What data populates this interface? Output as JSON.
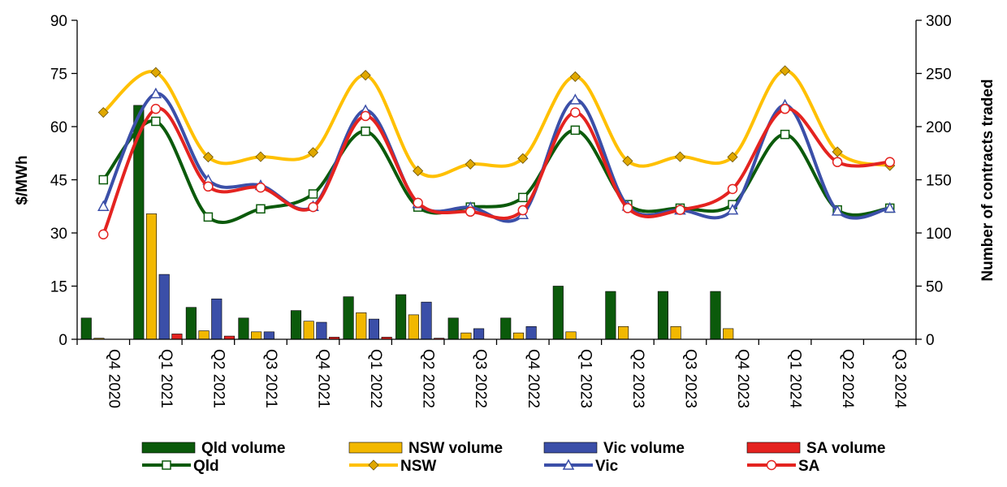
{
  "chart_data": {
    "type": "bar+line",
    "categories": [
      "Q4 2020",
      "Q1 2021",
      "Q2 2021",
      "Q3 2021",
      "Q4 2021",
      "Q1 2022",
      "Q2 2022",
      "Q3 2022",
      "Q4 2022",
      "Q1 2023",
      "Q2 2023",
      "Q3 2023",
      "Q4 2023",
      "Q1 2024",
      "Q2 2024",
      "Q3 2024"
    ],
    "ylabel": "$/MWh",
    "y2label": "Number of contracts traded",
    "ylim": [
      0,
      90
    ],
    "y2lim": [
      0,
      300
    ],
    "yticks": [
      0,
      15,
      30,
      45,
      60,
      75,
      90
    ],
    "y2ticks": [
      0,
      50,
      100,
      150,
      200,
      250,
      300
    ],
    "grid": false,
    "legend_position": "bottom",
    "bar_series": [
      {
        "name": "Qld volume",
        "color": "#0B5A0B",
        "values": [
          20,
          220,
          30,
          20,
          27,
          40,
          42,
          20,
          20,
          50,
          45,
          45,
          45,
          0,
          0,
          0
        ]
      },
      {
        "name": "NSW volume",
        "color": "#F2B800",
        "values": [
          1,
          118,
          8,
          7,
          17,
          25,
          23,
          6,
          6,
          7,
          12,
          12,
          10,
          0,
          0,
          0
        ]
      },
      {
        "name": "Vic volume",
        "color": "#3B4FA8",
        "values": [
          0,
          61,
          38,
          7,
          16,
          19,
          35,
          10,
          12,
          0,
          0,
          0,
          0,
          0,
          0,
          0
        ]
      },
      {
        "name": "SA volume",
        "color": "#E42320",
        "values": [
          0,
          5,
          3,
          0,
          2,
          2,
          1,
          0,
          0,
          0,
          0,
          0,
          0,
          0,
          0,
          0
        ]
      }
    ],
    "line_series": [
      {
        "name": "Qld",
        "color": "#0B5A0B",
        "marker": "square",
        "values": [
          45,
          61.5,
          34.5,
          36.8,
          41,
          58.7,
          37.3,
          37.3,
          40,
          59,
          38,
          37,
          38,
          57.8,
          36.5,
          37
        ]
      },
      {
        "name": "NSW",
        "color": "#FFC000",
        "marker": "diamond",
        "values": [
          64,
          75.3,
          51.4,
          51.5,
          52.7,
          74.5,
          47.5,
          49.4,
          51,
          74.1,
          50.3,
          51.5,
          51.4,
          75.8,
          52.9,
          49
        ]
      },
      {
        "name": "Vic",
        "color": "#3B4FA8",
        "marker": "triangle",
        "values": [
          37.5,
          69.3,
          44.9,
          43.4,
          37.5,
          64.6,
          38.3,
          37.2,
          35.2,
          67.6,
          37.6,
          36.5,
          36.5,
          66.1,
          36.2,
          37
        ]
      },
      {
        "name": "SA",
        "color": "#E42320",
        "marker": "circle",
        "values": [
          29.6,
          65,
          43.1,
          42.8,
          37.3,
          63,
          38.5,
          36,
          36.4,
          64,
          37,
          36.5,
          42.4,
          65,
          50,
          50
        ]
      }
    ]
  }
}
